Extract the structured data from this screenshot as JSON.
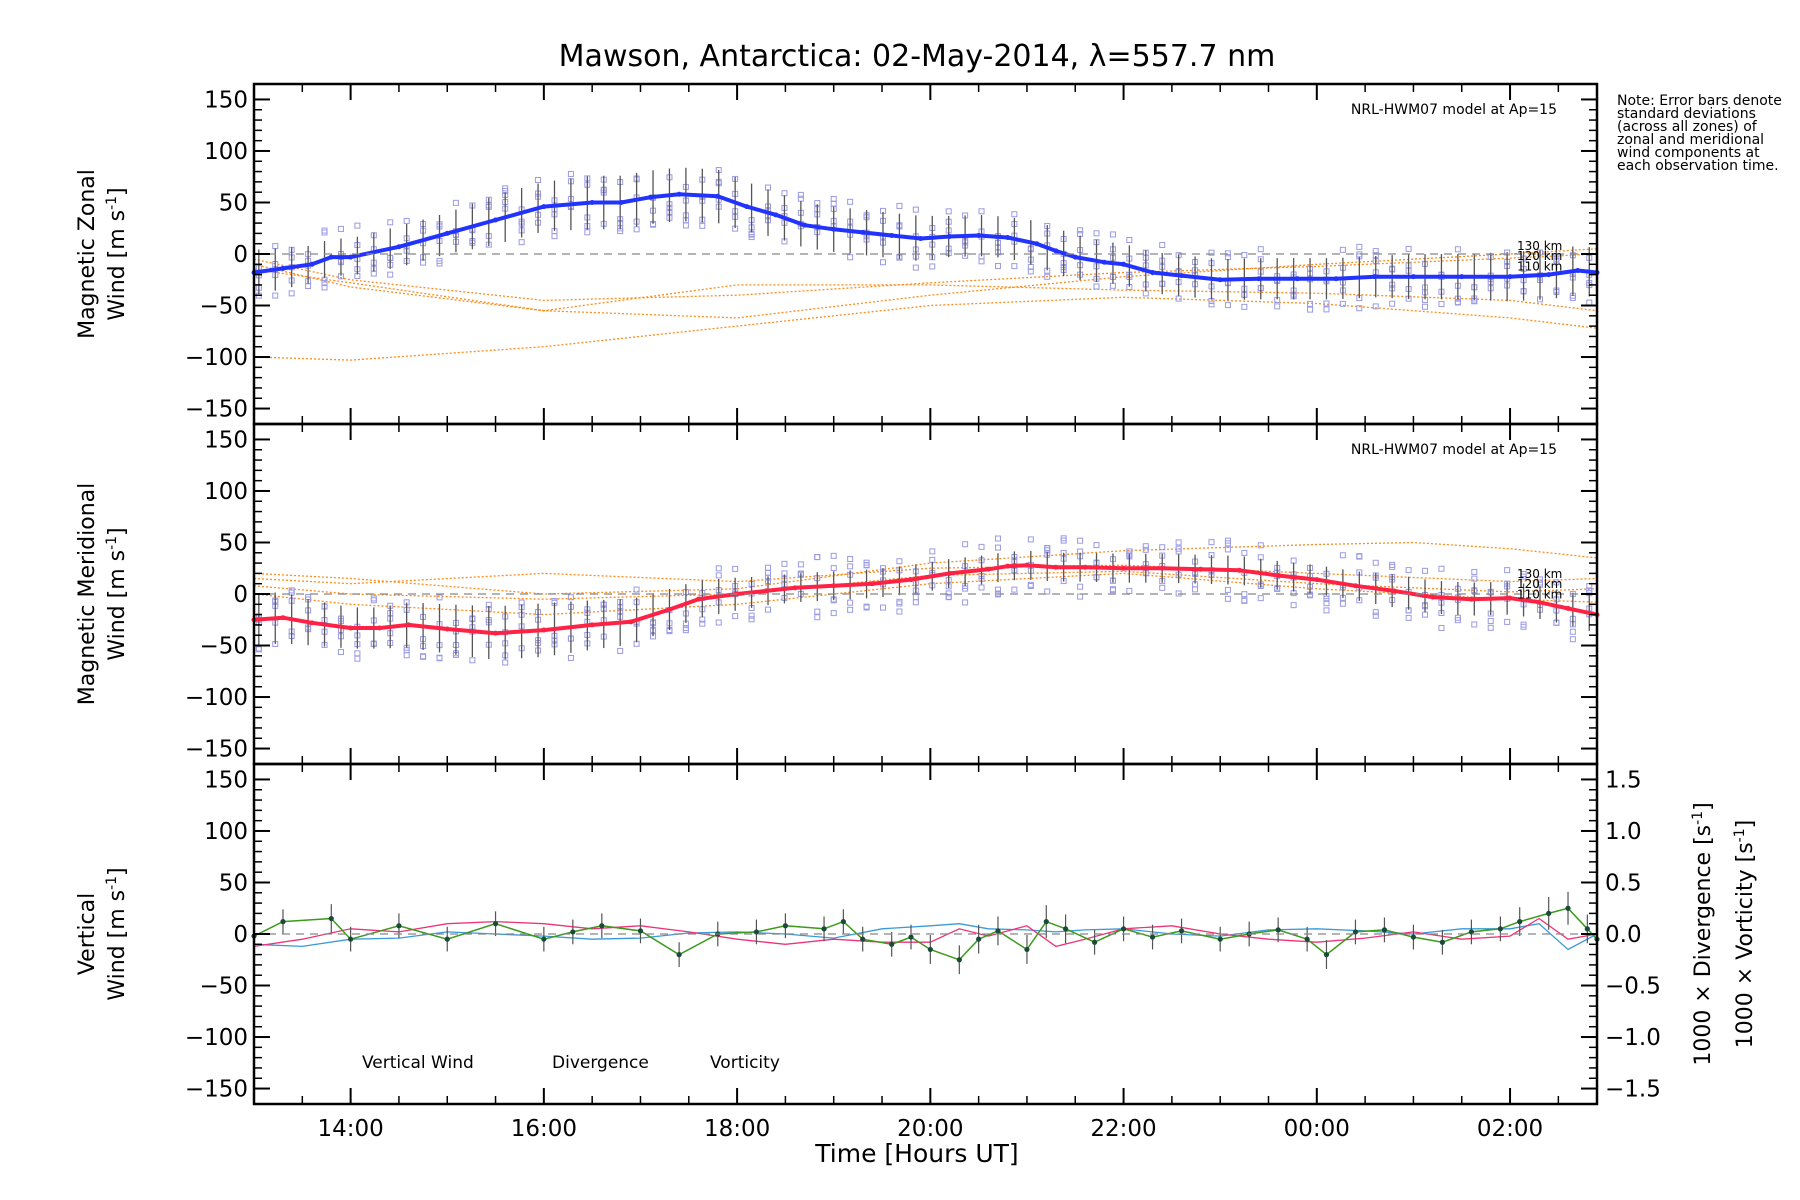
{
  "chart_data": {
    "type": "line",
    "title": "Mawson, Antarctica: 02-May-2014, λ=557.7 nm",
    "xlabel": "Time [Hours UT]",
    "x_unit": "hours UT (13.0 = 13:00 UT on 02-May-2014; values above 24 are the following day)",
    "xlim": [
      13.0,
      26.9
    ],
    "x_ticks": [
      14,
      16,
      18,
      20,
      22,
      24,
      26
    ],
    "x_tick_labels": [
      "14:00",
      "16:00",
      "18:00",
      "20:00",
      "22:00",
      "00:00",
      "02:00"
    ],
    "note": "Note: Error bars denote standard deviations (across all zones) of zonal and meridional wind components at each observation time.",
    "colors": {
      "zonal": "#2233ff",
      "meridional": "#ff2244",
      "model": "#ff8c1a",
      "zone_points": "#9a9ae6",
      "vertical": "#3a9a1a",
      "divergence": "#3a9ad8",
      "vorticity": "#ee3377",
      "errorbar": "#555555"
    },
    "panels": [
      {
        "id": "zonal",
        "ylabel_line1": "Magnetic Zonal",
        "ylabel_line2": "Wind [m s",
        "ylabel_sup": "-1",
        "ylabel_end": "]",
        "ylim": [
          -165,
          165
        ],
        "yticks": [
          -150,
          -100,
          -50,
          0,
          50,
          100,
          150
        ],
        "ytick_labels": [
          "−150",
          "−100",
          "−50",
          "0",
          "50",
          "100",
          "150"
        ],
        "model_label": "NRL-HWM07 model at Ap=15",
        "model_height_labels": [
          "130 km",
          "120 km",
          "110 km"
        ],
        "series_name": "Magnetic Zonal Wind",
        "x": [
          13.0,
          13.3,
          13.6,
          13.8,
          14.0,
          14.5,
          15.0,
          15.5,
          16.0,
          16.5,
          16.8,
          17.1,
          17.4,
          17.8,
          18.1,
          18.4,
          18.7,
          19.0,
          19.3,
          19.6,
          19.9,
          20.2,
          20.5,
          20.8,
          21.1,
          21.3,
          21.5,
          21.8,
          22.0,
          22.3,
          22.6,
          23.0,
          23.4,
          23.8,
          24.2,
          24.6,
          25.0,
          25.5,
          26.0,
          26.4,
          26.7,
          26.9
        ],
        "y": [
          -18,
          -14,
          -10,
          -3,
          -3,
          7,
          20,
          33,
          46,
          50,
          50,
          55,
          58,
          56,
          46,
          38,
          28,
          24,
          21,
          18,
          15,
          17,
          18,
          16,
          10,
          3,
          -3,
          -8,
          -10,
          -18,
          -21,
          -25,
          -24,
          -24,
          -24,
          -22,
          -22,
          -22,
          -22,
          -20,
          -16,
          -18
        ],
        "yerr": [
          22,
          20,
          18,
          18,
          18,
          20,
          20,
          24,
          24,
          26,
          26,
          26,
          26,
          26,
          24,
          22,
          22,
          22,
          22,
          22,
          22,
          20,
          20,
          20,
          22,
          22,
          22,
          20,
          20,
          20,
          20,
          20,
          20,
          20,
          20,
          20,
          22,
          22,
          24,
          24,
          24,
          24
        ],
        "model_curves": [
          {
            "x": [
              13.0,
              14.0,
              16.0,
              18.0,
              20.0,
              22.0,
              24.0,
              26.0,
              26.9
            ],
            "y": [
              -100,
              -103,
              -90,
              -70,
              -50,
              -42,
              -48,
              -62,
              -72
            ]
          },
          {
            "x": [
              13.0,
              14.0,
              16.0,
              18.0,
              20.0,
              22.0,
              24.0,
              26.0,
              26.9
            ],
            "y": [
              -10,
              -32,
              -55,
              -62,
              -40,
              -22,
              -10,
              0,
              5
            ]
          },
          {
            "x": [
              13.0,
              14.0,
              16.0,
              18.0,
              20.0,
              22.0,
              24.0,
              26.0,
              26.9
            ],
            "y": [
              -5,
              -25,
              -45,
              -40,
              -28,
              -18,
              -12,
              -4,
              0
            ]
          },
          {
            "x": [
              13.0,
              14.0,
              16.0,
              18.0,
              20.0,
              22.0,
              24.0,
              26.0,
              26.9
            ],
            "y": [
              -15,
              -28,
              -55,
              -30,
              -30,
              -35,
              -38,
              -45,
              -55
            ]
          }
        ]
      },
      {
        "id": "meridional",
        "ylabel_line1": "Magnetic Meridional",
        "ylabel_line2": "Wind [m s",
        "ylabel_sup": "-1",
        "ylabel_end": "]",
        "ylim": [
          -165,
          165
        ],
        "yticks": [
          -150,
          -100,
          -50,
          0,
          50,
          100,
          150
        ],
        "ytick_labels": [
          "−150",
          "−100",
          "−50",
          "0",
          "50",
          "100",
          "150"
        ],
        "model_label": "NRL-HWM07 model at Ap=15",
        "model_height_labels": [
          "130 km",
          "120 km",
          "110 km"
        ],
        "series_name": "Magnetic Meridional Wind",
        "x": [
          13.0,
          13.3,
          13.6,
          14.0,
          14.3,
          14.6,
          15.0,
          15.5,
          16.0,
          16.5,
          16.9,
          17.3,
          17.6,
          18.0,
          18.3,
          18.6,
          19.0,
          19.4,
          19.8,
          20.2,
          20.6,
          20.8,
          21.0,
          21.3,
          21.6,
          22.0,
          22.4,
          22.8,
          23.2,
          23.6,
          24.0,
          24.4,
          24.8,
          25.2,
          25.6,
          26.0,
          26.3,
          26.6,
          26.9
        ],
        "y": [
          -25,
          -23,
          -28,
          -33,
          -33,
          -30,
          -34,
          -38,
          -35,
          -30,
          -27,
          -15,
          -5,
          0,
          3,
          6,
          8,
          10,
          14,
          20,
          24,
          27,
          28,
          26,
          26,
          25,
          25,
          24,
          23,
          18,
          14,
          8,
          3,
          -3,
          -5,
          -4,
          -8,
          -14,
          -20
        ],
        "yerr": [
          25,
          25,
          22,
          20,
          20,
          22,
          24,
          26,
          26,
          24,
          22,
          20,
          18,
          16,
          14,
          14,
          14,
          14,
          14,
          14,
          14,
          14,
          14,
          14,
          14,
          14,
          14,
          14,
          14,
          14,
          14,
          14,
          16,
          16,
          16,
          16,
          16,
          16,
          18
        ],
        "model_curves": [
          {
            "x": [
              13.0,
              14.0,
              16.0,
              18.0,
              20.0,
              22.0,
              24.0,
              25.0,
              26.0,
              26.9
            ],
            "y": [
              20,
              15,
              0,
              5,
              30,
              42,
              48,
              50,
              44,
              35
            ]
          },
          {
            "x": [
              13.0,
              14.0,
              16.0,
              18.0,
              20.0,
              22.0,
              24.0,
              26.0,
              26.9
            ],
            "y": [
              15,
              10,
              20,
              12,
              25,
              28,
              20,
              12,
              15
            ]
          },
          {
            "x": [
              13.0,
              14.0,
              16.0,
              18.0,
              20.0,
              22.0,
              24.0,
              26.0,
              26.9
            ],
            "y": [
              8,
              0,
              -5,
              0,
              18,
              22,
              10,
              2,
              5
            ]
          },
          {
            "x": [
              13.0,
              14.0,
              16.0,
              18.0,
              20.0,
              22.0,
              24.0,
              26.0,
              26.9
            ],
            "y": [
              0,
              -10,
              -20,
              -10,
              10,
              20,
              5,
              -5,
              -8
            ]
          }
        ]
      },
      {
        "id": "vertical",
        "ylabel_line1": "Vertical",
        "ylabel_line2": "Wind [m s",
        "ylabel_sup": "-1",
        "ylabel_end": "]",
        "ylim": [
          -165,
          165
        ],
        "yticks": [
          -150,
          -100,
          -50,
          0,
          50,
          100,
          150
        ],
        "ytick_labels": [
          "−150",
          "−100",
          "−50",
          "0",
          "50",
          "100",
          "150"
        ],
        "right_ylim": [
          -1.65,
          1.65
        ],
        "right_yticks": [
          -1.5,
          -1.0,
          -0.5,
          0.0,
          0.5,
          1.0,
          1.5
        ],
        "right_ytick_labels": [
          "−1.5",
          "−1.0",
          "−0.5",
          "0.0",
          "0.5",
          "1.0",
          "1.5"
        ],
        "right_ylabel_1_pre": "1000 × Divergence [s",
        "right_ylabel_1_sup": "-1",
        "right_ylabel_1_end": "]",
        "right_ylabel_2_pre": "1000 × Vorticity [s",
        "right_ylabel_2_sup": "-1",
        "right_ylabel_2_end": "]",
        "legend": [
          "Vertical Wind",
          "Divergence",
          "Vorticity"
        ],
        "vertical_wind": {
          "x": [
            13.0,
            13.3,
            13.8,
            14.0,
            14.5,
            15.0,
            15.5,
            16.0,
            16.3,
            16.6,
            17.0,
            17.4,
            17.8,
            18.2,
            18.5,
            18.9,
            19.1,
            19.3,
            19.6,
            19.8,
            20.0,
            20.3,
            20.5,
            20.7,
            21.0,
            21.2,
            21.4,
            21.7,
            22.0,
            22.3,
            22.6,
            23.0,
            23.3,
            23.6,
            23.9,
            24.1,
            24.4,
            24.7,
            25.0,
            25.3,
            25.6,
            25.9,
            26.1,
            26.4,
            26.6,
            26.8,
            26.9
          ],
          "y": [
            -2,
            12,
            15,
            -5,
            8,
            -5,
            10,
            -5,
            2,
            8,
            3,
            -20,
            0,
            2,
            8,
            5,
            12,
            -5,
            -10,
            -3,
            -15,
            -25,
            -5,
            3,
            -15,
            12,
            5,
            -8,
            5,
            -3,
            3,
            -5,
            0,
            4,
            -5,
            -20,
            2,
            4,
            -3,
            -8,
            2,
            5,
            12,
            20,
            25,
            5,
            -5
          ],
          "yerr": [
            10,
            12,
            14,
            12,
            12,
            12,
            12,
            12,
            12,
            12,
            12,
            12,
            12,
            12,
            12,
            12,
            12,
            12,
            12,
            12,
            14,
            14,
            14,
            14,
            14,
            16,
            14,
            12,
            12,
            12,
            12,
            12,
            12,
            12,
            12,
            14,
            12,
            12,
            12,
            12,
            12,
            12,
            14,
            16,
            16,
            14,
            12
          ]
        },
        "divergence": {
          "x": [
            13.0,
            13.5,
            14.0,
            14.5,
            15.0,
            15.5,
            16.0,
            16.5,
            17.0,
            17.5,
            18.0,
            18.5,
            19.0,
            19.5,
            20.0,
            20.3,
            20.6,
            21.0,
            21.3,
            21.6,
            22.0,
            22.5,
            23.0,
            23.5,
            24.0,
            24.5,
            25.0,
            25.5,
            26.0,
            26.3,
            26.6,
            26.9
          ],
          "y": [
            -0.1,
            -0.12,
            -0.05,
            -0.04,
            0.02,
            0.0,
            -0.02,
            -0.05,
            -0.04,
            0.01,
            0.02,
            0.0,
            -0.04,
            0.05,
            0.08,
            0.1,
            0.05,
            0.04,
            0.02,
            0.04,
            0.05,
            0.0,
            -0.02,
            0.04,
            0.05,
            0.03,
            0.0,
            0.05,
            0.05,
            0.1,
            -0.15,
            0.0
          ]
        },
        "vorticity": {
          "x": [
            13.0,
            13.5,
            14.0,
            14.5,
            15.0,
            15.5,
            16.0,
            16.5,
            17.0,
            17.5,
            18.0,
            18.5,
            19.0,
            19.5,
            20.0,
            20.3,
            20.6,
            21.0,
            21.3,
            21.6,
            22.0,
            22.5,
            23.0,
            23.5,
            24.0,
            24.5,
            25.0,
            25.5,
            26.0,
            26.3,
            26.6,
            26.9
          ],
          "y": [
            -0.12,
            -0.05,
            0.05,
            0.02,
            0.1,
            0.12,
            0.1,
            0.05,
            0.08,
            0.02,
            -0.05,
            -0.1,
            -0.05,
            -0.08,
            -0.08,
            0.05,
            -0.02,
            0.08,
            -0.12,
            -0.05,
            0.05,
            0.08,
            0.0,
            -0.05,
            -0.08,
            -0.04,
            0.02,
            -0.05,
            -0.02,
            0.15,
            -0.05,
            0.0
          ]
        }
      }
    ]
  }
}
